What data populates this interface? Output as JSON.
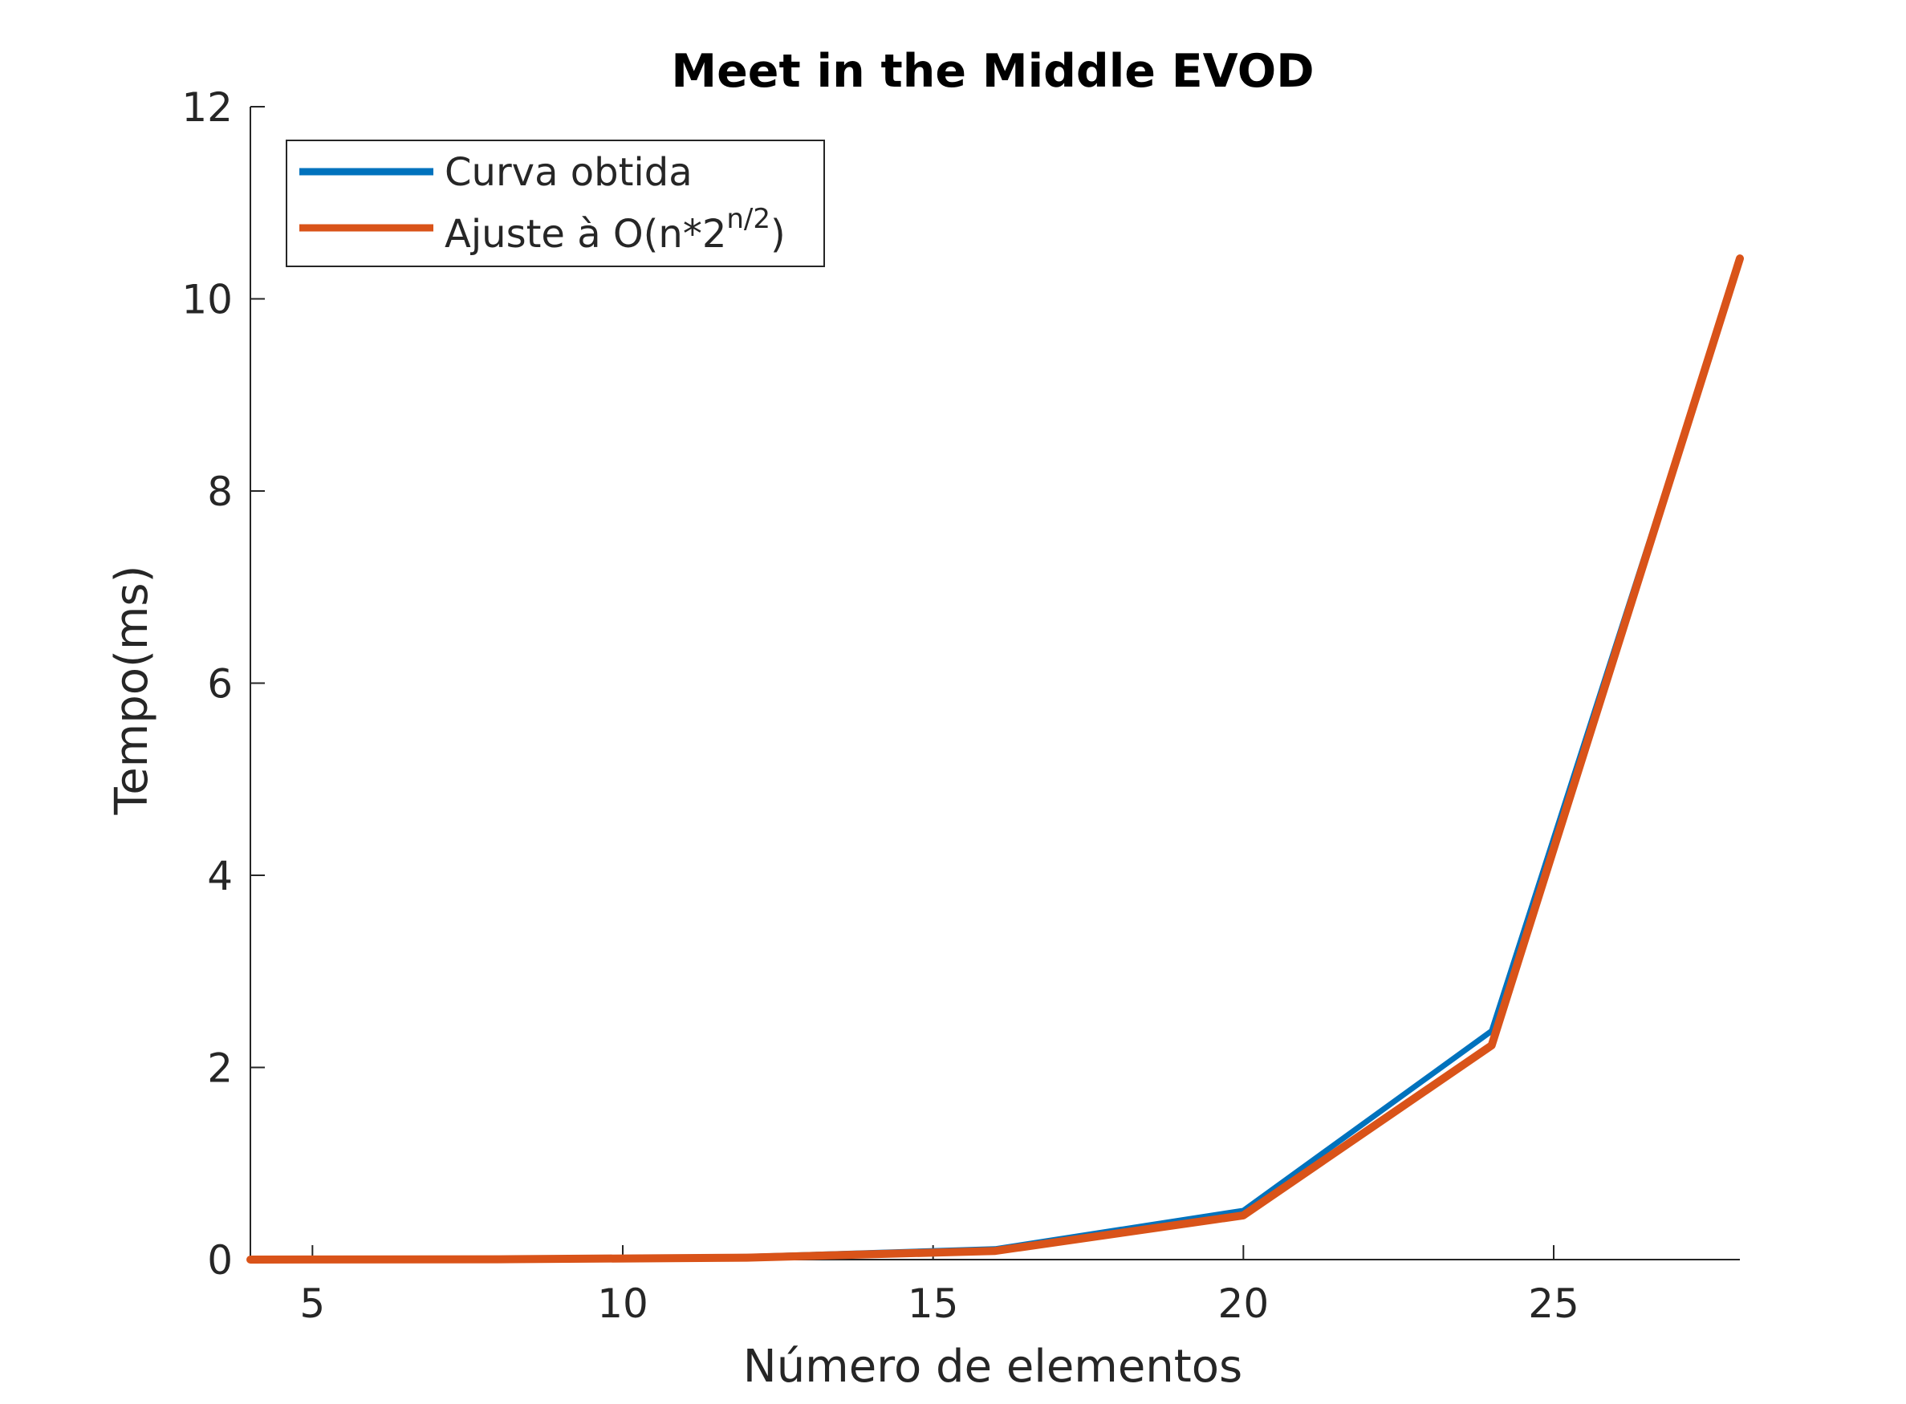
{
  "chart_data": {
    "type": "line",
    "title": "Meet in the Middle EVOD",
    "xlabel": "Número de elementos",
    "ylabel": "Tempo(ms)",
    "xlim": [
      4,
      28
    ],
    "ylim": [
      0,
      12
    ],
    "xticks": [
      5,
      10,
      15,
      20,
      25
    ],
    "yticks": [
      0,
      2,
      4,
      6,
      8,
      10,
      12
    ],
    "grid": false,
    "legend_position": "top-left",
    "series": [
      {
        "name": "Curva obtida",
        "color": "#0072BD",
        "x": [
          4,
          8,
          12,
          16,
          20,
          24,
          28
        ],
        "y": [
          0.0,
          0.005,
          0.03,
          0.11,
          0.51,
          2.38,
          10.4
        ]
      },
      {
        "name": "Ajuste à O(n*2",
        "name_superscript": "n/2",
        "name_suffix": ")",
        "color": "#D95319",
        "x": [
          4,
          8,
          12,
          16,
          20,
          24,
          28
        ],
        "y": [
          0.0,
          0.003,
          0.02,
          0.09,
          0.46,
          2.23,
          10.42
        ]
      }
    ]
  }
}
